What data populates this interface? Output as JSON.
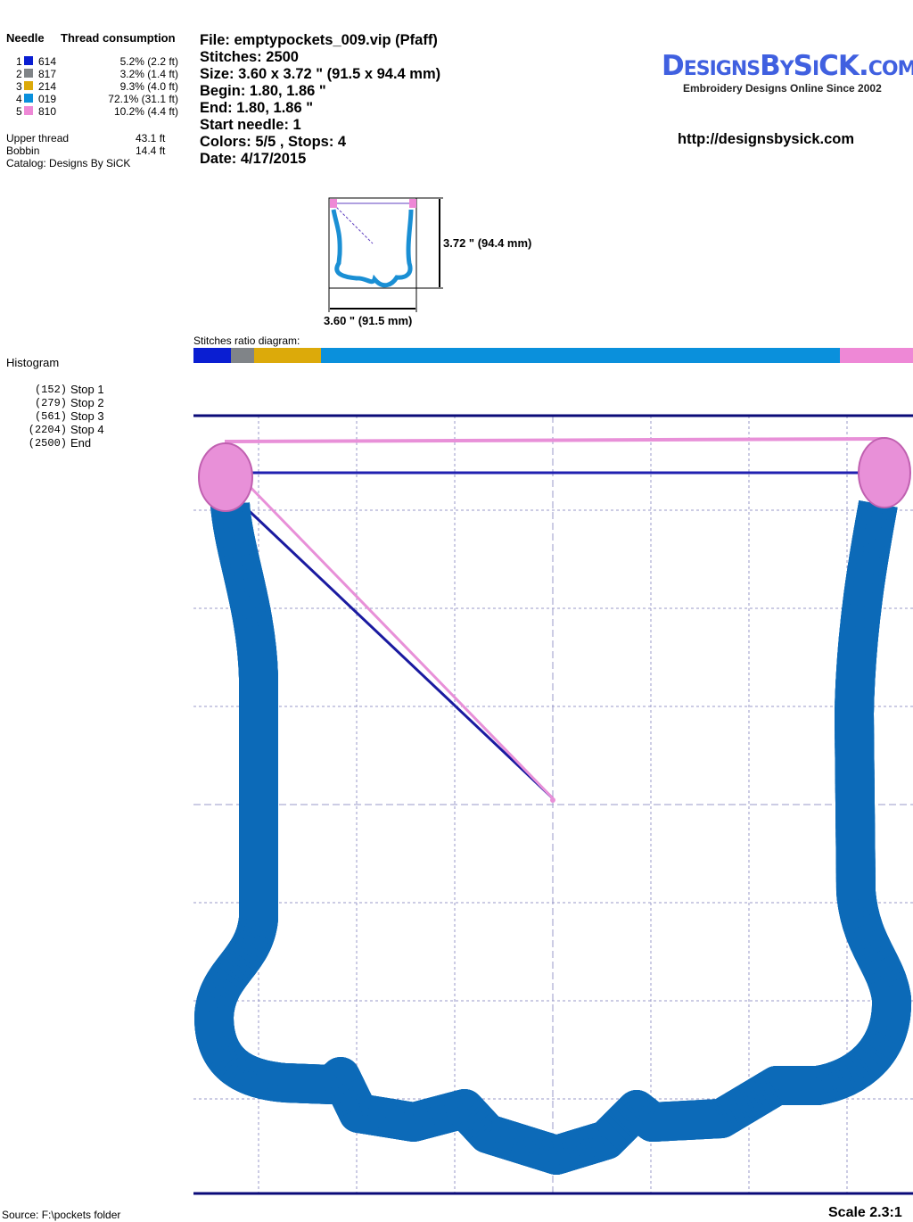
{
  "legend": {
    "needle_header": "Needle",
    "thread_header": "Thread consumption",
    "needles": [
      {
        "num": "1",
        "color": "#0a1ed2",
        "code": "614",
        "consumption": "5.2% (2.2 ft)"
      },
      {
        "num": "2",
        "color": "#808488",
        "code": "817",
        "consumption": "3.2% (1.4 ft)"
      },
      {
        "num": "3",
        "color": "#dcaa0a",
        "code": "214",
        "consumption": "9.3% (4.0 ft)"
      },
      {
        "num": "4",
        "color": "#0a90dc",
        "code": "019",
        "consumption": "72.1% (31.1 ft)"
      },
      {
        "num": "5",
        "color": "#ee88d6",
        "code": "810",
        "consumption": "10.2% (4.4 ft)"
      }
    ],
    "upper_thread_label": "Upper thread",
    "upper_thread": "43.1 ft",
    "bobbin_label": "Bobbin",
    "bobbin": "14.4 ft",
    "catalog": "Catalog: Designs By SiCK"
  },
  "info": {
    "file": "File: emptypockets_009.vip  (Pfaff)",
    "stitches": "Stitches: 2500",
    "size": "Size: 3.60 x 3.72 \" (91.5 x 94.4 mm)",
    "begin": "Begin: 1.80, 1.86 \"",
    "end": "End: 1.80, 1.86 \"",
    "start_needle": "Start needle: 1",
    "colors": "Colors: 5/5 , Stops: 4",
    "date": "Date: 4/17/2015"
  },
  "brand": {
    "logo": "DesignsBySiCK.com",
    "tagline": "Embroidery Designs Online Since 2002",
    "url": "http://designsbysick.com"
  },
  "thumbnail": {
    "height_label": "3.72 \" (94.4 mm)",
    "width_label": "3.60 \" (91.5 mm)"
  },
  "ratio": {
    "label": "Stitches ratio diagram:",
    "shares": [
      5.2,
      3.2,
      9.3,
      72.1,
      10.2
    ]
  },
  "histogram": {
    "title": "Histogram",
    "stops": [
      {
        "count": "(152)",
        "label": "Stop 1"
      },
      {
        "count": "(279)",
        "label": "Stop 2"
      },
      {
        "count": "(561)",
        "label": "Stop 3"
      },
      {
        "count": "(2204)",
        "label": "Stop 4"
      },
      {
        "count": "(2500)",
        "label": "End"
      }
    ]
  },
  "footer": {
    "source": "Source: F:\\pockets folder",
    "scale": "Scale 2.3:1"
  }
}
